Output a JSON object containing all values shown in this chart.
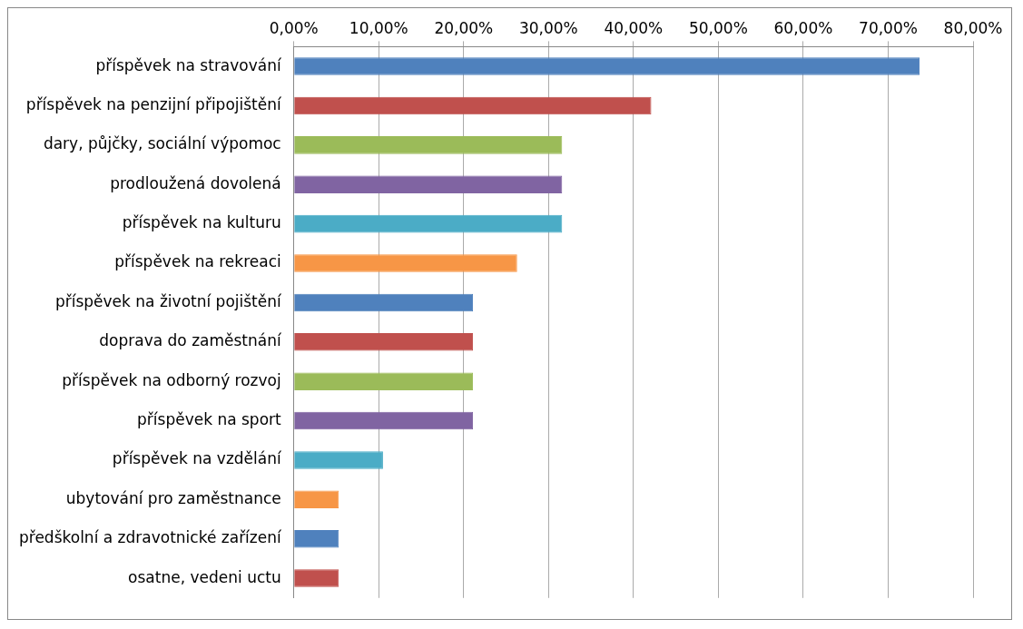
{
  "chart_data": {
    "type": "bar",
    "orientation": "horizontal",
    "categories": [
      "příspěvek na stravování",
      "příspěvek na penzijní připojištění",
      "dary, půjčky, sociální výpomoc",
      "prodloužená dovolená",
      "příspěvek na kulturu",
      "příspěvek na rekreaci",
      "příspěvek na životní pojištění",
      "doprava do zaměstnání",
      "příspěvek na odborný rozvoj",
      "příspěvek na sport",
      "příspěvek na vzdělání",
      "ubytování pro zaměstnance",
      "předškolní a zdravotnické zařízení",
      "osatne, vedeni uctu"
    ],
    "values": [
      73.7,
      42.1,
      31.6,
      31.6,
      31.6,
      26.3,
      21.1,
      21.1,
      21.1,
      21.1,
      10.5,
      5.3,
      5.3,
      5.3
    ],
    "colors": [
      "#4f81bd",
      "#c0504d",
      "#9bbb59",
      "#8064a2",
      "#4bacc6",
      "#f79646",
      "#4f81bd",
      "#c0504d",
      "#9bbb59",
      "#8064a2",
      "#4bacc6",
      "#f79646",
      "#4f81bd",
      "#c0504d"
    ],
    "xlim": [
      0,
      80
    ],
    "xticks": [
      {
        "value": 0,
        "label": "0,00%"
      },
      {
        "value": 10,
        "label": "10,00%"
      },
      {
        "value": 20,
        "label": "20,00%"
      },
      {
        "value": 30,
        "label": "30,00%"
      },
      {
        "value": 40,
        "label": "40,00%"
      },
      {
        "value": 50,
        "label": "50,00%"
      },
      {
        "value": 60,
        "label": "60,00%"
      },
      {
        "value": 70,
        "label": "70,00%"
      },
      {
        "value": 80,
        "label": "80,00%"
      }
    ],
    "grid": "x",
    "legend": false
  }
}
